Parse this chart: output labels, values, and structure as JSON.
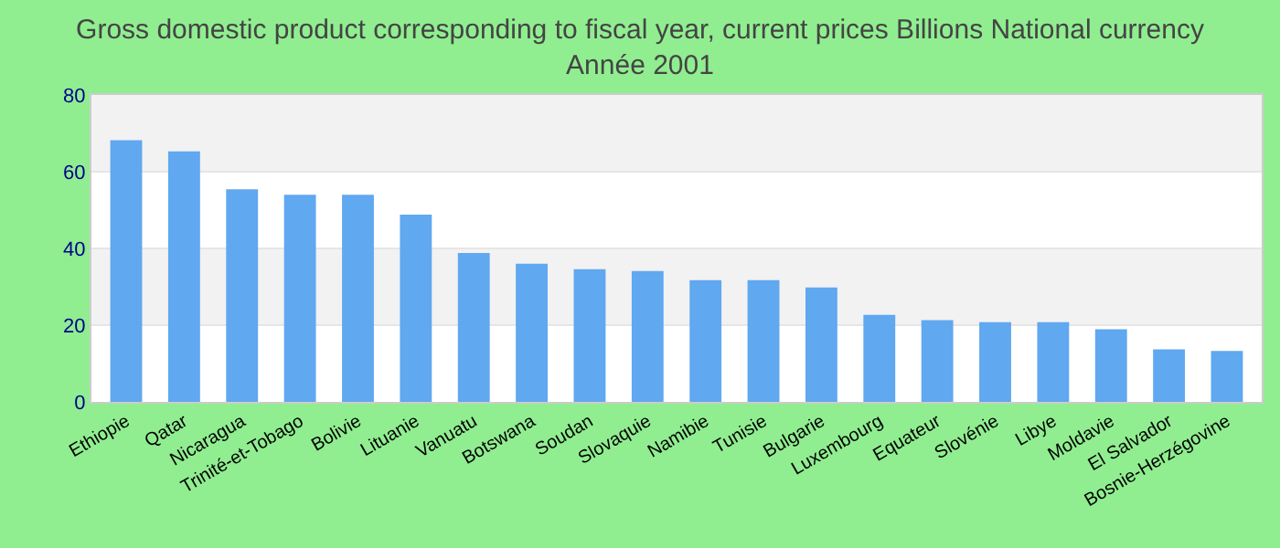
{
  "chart_data": {
    "type": "bar",
    "title": "Gross domestic product corresponding to fiscal year, current prices Billions National currency\nAnnée 2001",
    "categories": [
      "Ethiopie",
      "Qatar",
      "Nicaragua",
      "Trinité-et-Tobago",
      "Bolivie",
      "Lituanie",
      "Vanuatu",
      "Botswana",
      "Soudan",
      "Slovaquie",
      "Namibie",
      "Tunisie",
      "Bulgarie",
      "Luxembourg",
      "Equateur",
      "Slovénie",
      "Libye",
      "Moldavie",
      "El Salvador",
      "Bosnie-Herzégovine"
    ],
    "values": [
      68.2,
      65.3,
      55.4,
      54.0,
      54.0,
      48.8,
      38.8,
      36.0,
      34.6,
      34.1,
      31.7,
      31.7,
      29.8,
      22.7,
      21.3,
      20.8,
      20.8,
      18.9,
      13.7,
      13.3
    ],
    "color": "#60a8f0",
    "ylim": [
      0,
      80
    ],
    "yticks": [
      0,
      20,
      40,
      60,
      80
    ],
    "grid": true
  }
}
